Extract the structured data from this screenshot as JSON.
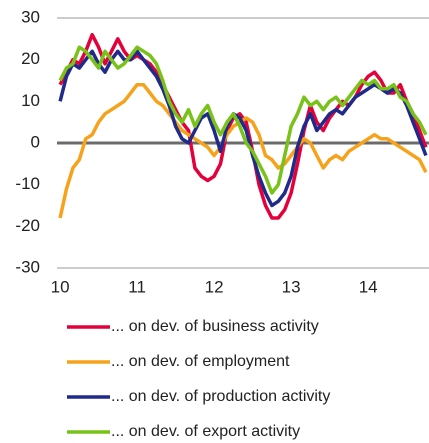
{
  "chart_data": {
    "type": "line",
    "x": [
      10,
      10.083,
      10.167,
      10.25,
      10.333,
      10.417,
      10.5,
      10.583,
      10.667,
      10.75,
      10.833,
      10.917,
      11,
      11.083,
      11.167,
      11.25,
      11.333,
      11.417,
      11.5,
      11.583,
      11.667,
      11.75,
      11.833,
      11.917,
      12,
      12.083,
      12.167,
      12.25,
      12.333,
      12.417,
      12.5,
      12.583,
      12.667,
      12.75,
      12.833,
      12.917,
      13,
      13.083,
      13.167,
      13.25,
      13.333,
      13.417,
      13.5,
      13.583,
      13.667,
      13.75,
      13.833,
      13.917,
      14,
      14.083,
      14.167,
      14.25,
      14.333,
      14.417,
      14.5,
      14.583,
      14.667,
      14.75
    ],
    "series": [
      {
        "name": "... on dev. of business activity",
        "color": "#e4003b",
        "values": [
          14,
          17,
          20,
          19,
          22,
          26,
          23,
          19,
          22,
          25,
          22,
          20,
          21,
          20,
          19,
          17,
          14,
          11,
          8,
          5,
          3,
          -6,
          -8,
          -9,
          -8,
          -5,
          3,
          6,
          7,
          5,
          -2,
          -10,
          -15,
          -18,
          -18,
          -16,
          -12,
          -5,
          3,
          9,
          5,
          3,
          6,
          8,
          10,
          9,
          11,
          14,
          16,
          17,
          15,
          12,
          12,
          14,
          10,
          7,
          3,
          -1
        ]
      },
      {
        "name": "... on dev. of employment",
        "color": "#f7a21b",
        "values": [
          -18,
          -11,
          -6,
          -4,
          1,
          2,
          5,
          7,
          8,
          9,
          10,
          12,
          14,
          14,
          12,
          10,
          9,
          7,
          5,
          3,
          2,
          1,
          0,
          -1,
          -3,
          -1,
          2,
          4,
          5,
          6,
          5,
          2,
          -3,
          -4,
          -6,
          -5,
          -3,
          -1,
          1,
          0,
          -3,
          -6,
          -4,
          -3,
          -4,
          -2,
          -1,
          0,
          1,
          2,
          1,
          1,
          0,
          -1,
          -2,
          -3,
          -4,
          -7
        ]
      },
      {
        "name": "... on dev. of production activity",
        "color": "#1f2a8a",
        "values": [
          10,
          16,
          19,
          18,
          20,
          22,
          19,
          17,
          20,
          22,
          20,
          20,
          22,
          20,
          18,
          16,
          13,
          9,
          4,
          1,
          0,
          3,
          6,
          7,
          3,
          -2,
          4,
          7,
          6,
          3,
          -3,
          -8,
          -12,
          -15,
          -14,
          -12,
          -8,
          -1,
          4,
          7,
          3,
          5,
          7,
          8,
          7,
          9,
          11,
          12,
          13,
          14,
          13,
          12,
          13,
          12,
          9,
          5,
          1,
          -3
        ]
      },
      {
        "name": "... on dev. of export activity",
        "color": "#78c21a",
        "values": [
          15,
          18,
          19,
          23,
          22,
          20,
          18,
          22,
          20,
          18,
          19,
          21,
          23,
          22,
          21,
          19,
          15,
          10,
          7,
          5,
          8,
          4,
          7,
          9,
          5,
          2,
          5,
          7,
          4,
          0,
          -2,
          -5,
          -8,
          -12,
          -10,
          -3,
          4,
          7,
          11,
          9,
          10,
          8,
          10,
          11,
          9,
          11,
          13,
          15,
          14,
          15,
          13,
          13,
          14,
          11,
          10,
          7,
          5,
          2
        ]
      }
    ],
    "xlim": [
      9.96,
      14.79
    ],
    "xticks": [
      10,
      11,
      12,
      13,
      14
    ],
    "ylim": [
      -30,
      30
    ],
    "yticks": [
      30,
      20,
      10,
      0,
      -10,
      -20,
      -30
    ]
  }
}
